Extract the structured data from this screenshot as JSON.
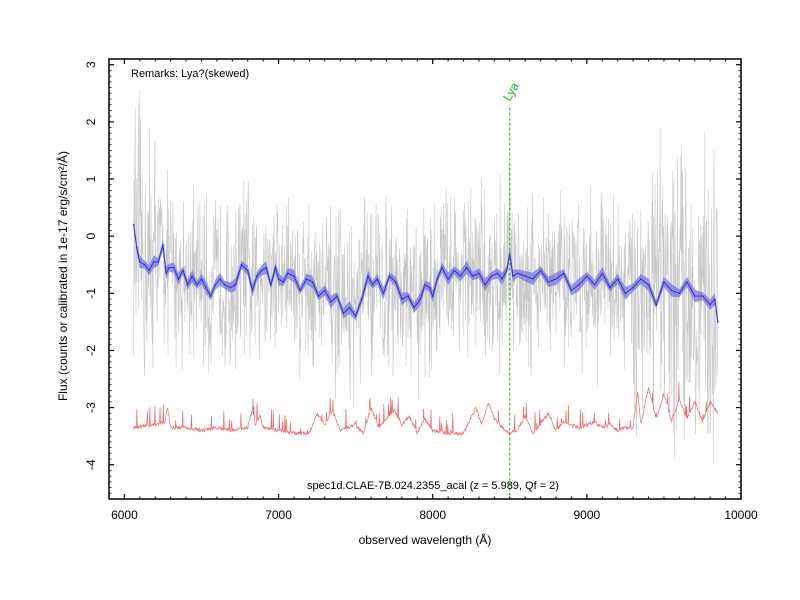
{
  "chart_data": {
    "type": "line",
    "xlabel": "observed wavelength (Å)",
    "ylabel": "Flux (counts or calibrated in 1e-17 erg/s/cm²/Å)",
    "xlim": [
      5900,
      10000
    ],
    "ylim": [
      -4.6,
      3.1
    ],
    "x_ticks": [
      6000,
      7000,
      8000,
      9000,
      10000
    ],
    "y_ticks": [
      -4,
      -3,
      -2,
      -1,
      0,
      1,
      2,
      3
    ],
    "grid": false,
    "annotations": {
      "remarks": "Remarks: Lya?(skewed)",
      "object": "spec1d.CLAE-7B.024.2355_acal (z = 5.989, Qf = 2)"
    },
    "lines": [
      {
        "label": "Lya",
        "x": 8500,
        "color": "#22aa22"
      }
    ],
    "colors": {
      "raw": "#c8c8c8",
      "smoothed": "#3333dd",
      "band": "#7777e0",
      "error": "#ee6a6a"
    },
    "series": [
      {
        "role": "smoothed-flux",
        "x": [
          6060,
          6080,
          6100,
          6130,
          6160,
          6190,
          6220,
          6250,
          6270,
          6290,
          6320,
          6350,
          6380,
          6410,
          6440,
          6470,
          6500,
          6530,
          6560,
          6590,
          6620,
          6650,
          6690,
          6720,
          6760,
          6800,
          6830,
          6860,
          6890,
          6920,
          6950,
          6980,
          7000,
          7030,
          7060,
          7100,
          7140,
          7180,
          7220,
          7260,
          7300,
          7340,
          7380,
          7420,
          7460,
          7500,
          7540,
          7580,
          7610,
          7640,
          7680,
          7720,
          7760,
          7800,
          7840,
          7880,
          7920,
          7950,
          7980,
          8000,
          8030,
          8060,
          8100,
          8140,
          8180,
          8220,
          8260,
          8300,
          8340,
          8380,
          8420,
          8450,
          8480,
          8500,
          8520,
          8550,
          8600,
          8650,
          8700,
          8750,
          8800,
          8850,
          8900,
          8950,
          9000,
          9050,
          9100,
          9150,
          9200,
          9250,
          9300,
          9350,
          9400,
          9450,
          9500,
          9550,
          9600,
          9650,
          9700,
          9750,
          9800,
          9830,
          9850
        ],
        "y": [
          0.2,
          -0.2,
          -0.45,
          -0.5,
          -0.6,
          -0.45,
          -0.45,
          -0.15,
          -0.65,
          -0.55,
          -0.55,
          -0.75,
          -0.6,
          -0.85,
          -0.7,
          -0.85,
          -0.75,
          -0.9,
          -1.05,
          -0.85,
          -0.75,
          -0.85,
          -0.9,
          -0.85,
          -0.5,
          -0.6,
          -0.95,
          -0.7,
          -0.6,
          -0.55,
          -0.85,
          -0.55,
          -0.75,
          -0.8,
          -0.65,
          -0.7,
          -0.95,
          -0.75,
          -0.8,
          -1.05,
          -0.95,
          -1.15,
          -1.05,
          -1.35,
          -1.25,
          -1.4,
          -1.1,
          -0.7,
          -0.85,
          -0.75,
          -1.0,
          -0.7,
          -0.8,
          -1.1,
          -1.05,
          -1.25,
          -1.1,
          -0.85,
          -0.9,
          -1.05,
          -0.75,
          -0.55,
          -0.75,
          -0.6,
          -0.7,
          -0.55,
          -0.7,
          -0.65,
          -0.85,
          -0.7,
          -0.65,
          -0.75,
          -0.6,
          -0.3,
          -0.7,
          -0.65,
          -0.7,
          -0.75,
          -0.6,
          -0.8,
          -0.75,
          -0.65,
          -0.95,
          -0.85,
          -0.7,
          -0.85,
          -0.65,
          -0.9,
          -0.75,
          -1.0,
          -0.9,
          -0.75,
          -0.85,
          -1.2,
          -0.8,
          -0.95,
          -1.0,
          -0.8,
          -1.05,
          -1.05,
          -1.2,
          -1.1,
          -1.5
        ]
      },
      {
        "role": "error-spectrum",
        "x": [
          6060,
          6200,
          6260,
          6280,
          6300,
          6400,
          6500,
          6600,
          6700,
          6800,
          6830,
          6850,
          6880,
          6900,
          7000,
          7100,
          7200,
          7250,
          7300,
          7350,
          7400,
          7500,
          7550,
          7600,
          7650,
          7700,
          7750,
          7800,
          7850,
          7900,
          7950,
          8000,
          8100,
          8200,
          8280,
          8320,
          8360,
          8400,
          8450,
          8500,
          8550,
          8600,
          8650,
          8700,
          8750,
          8800,
          8850,
          8900,
          8950,
          9000,
          9050,
          9100,
          9150,
          9200,
          9250,
          9300,
          9330,
          9350,
          9400,
          9450,
          9500,
          9550,
          9600,
          9650,
          9700,
          9750,
          9800,
          9850
        ],
        "y": [
          -3.35,
          -3.3,
          -3.25,
          -3.0,
          -3.35,
          -3.35,
          -3.4,
          -3.35,
          -3.4,
          -3.35,
          -3.05,
          -3.3,
          -3.15,
          -3.35,
          -3.4,
          -3.45,
          -3.45,
          -3.1,
          -3.3,
          -3.05,
          -3.4,
          -3.3,
          -3.45,
          -3.0,
          -3.35,
          -3.2,
          -3.05,
          -3.3,
          -3.15,
          -3.45,
          -3.2,
          -3.4,
          -3.45,
          -3.45,
          -3.0,
          -3.3,
          -2.9,
          -3.2,
          -3.35,
          -3.45,
          -3.4,
          -3.15,
          -3.45,
          -3.3,
          -3.1,
          -3.4,
          -3.25,
          -3.3,
          -3.35,
          -3.3,
          -3.25,
          -3.35,
          -3.3,
          -3.4,
          -3.35,
          -3.35,
          -2.7,
          -3.3,
          -2.65,
          -3.2,
          -2.75,
          -3.25,
          -2.85,
          -3.2,
          -2.9,
          -3.25,
          -2.9,
          -3.1
        ]
      }
    ]
  }
}
